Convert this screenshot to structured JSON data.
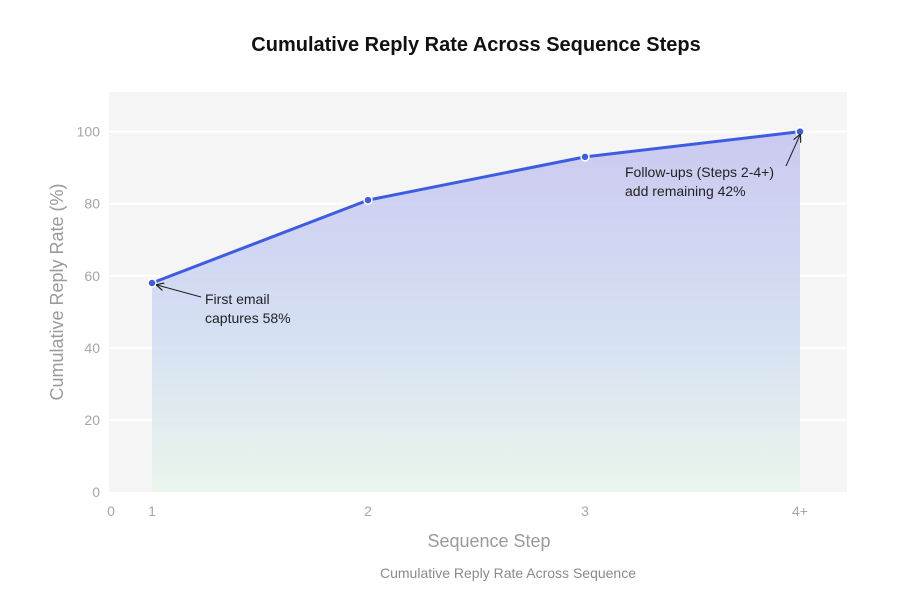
{
  "chart_data": {
    "type": "line",
    "title": "Cumulative Reply Rate Across Sequence Steps",
    "xlabel": "Sequence Step",
    "ylabel": "Cumulative Reply Rate (%)",
    "caption": "Cumulative Reply Rate Across Sequence",
    "x_tick_labels": [
      "0",
      "1",
      "2",
      "3",
      "4+"
    ],
    "y_ticks": [
      0,
      20,
      40,
      60,
      80,
      100
    ],
    "ylim": [
      0,
      111
    ],
    "x": [
      "1",
      "2",
      "3",
      "4+"
    ],
    "values": [
      58,
      81,
      93,
      100
    ],
    "grid": true,
    "colors": {
      "line": "#3d5ce0",
      "area_top": "#c6c4ef",
      "area_bottom": "#e7f5ea",
      "plot_bg": "#f5f5f5"
    },
    "annotations": [
      {
        "point": "1",
        "lines": [
          "First email",
          "captures 58%"
        ]
      },
      {
        "point": "4+",
        "lines": [
          "Follow-ups (Steps 2-4+)",
          "add remaining 42%"
        ]
      }
    ]
  }
}
